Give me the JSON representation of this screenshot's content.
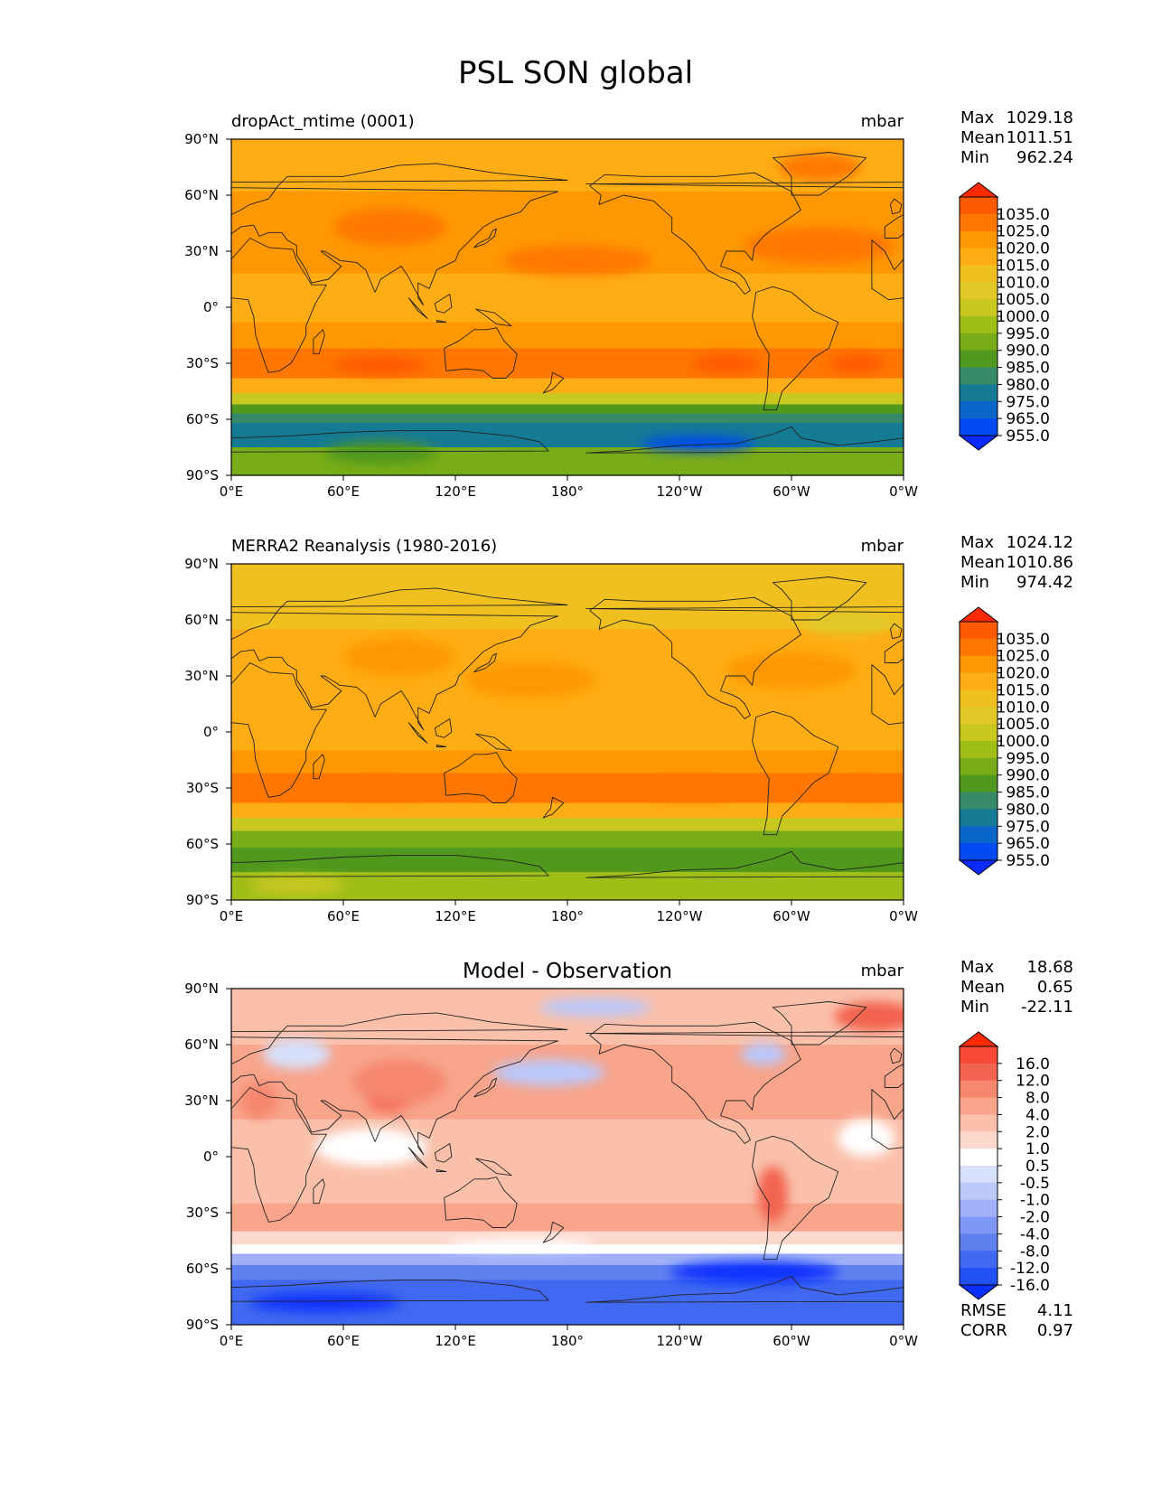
{
  "figure_title": "PSL SON global",
  "axes": {
    "xticks": [
      "0°E",
      "60°E",
      "120°E",
      "180°",
      "120°W",
      "60°W",
      "0°W"
    ],
    "yticks": [
      "90°N",
      "60°N",
      "30°N",
      "0°",
      "30°S",
      "60°S",
      "90°S"
    ]
  },
  "chart_data": [
    {
      "type": "heatmap",
      "panel": "model",
      "title": "dropAct_mtime (0001)",
      "units": "mbar",
      "xlim": [
        0,
        360
      ],
      "ylim": [
        -90,
        90
      ],
      "stats": {
        "max_label": "Max",
        "max": "1029.18",
        "mean_label": "Mean",
        "mean": "1011.51",
        "min_label": "Min",
        "min": "962.24"
      },
      "colorbar": {
        "ticks": [
          "1035.0",
          "1025.0",
          "1020.0",
          "1015.0",
          "1010.0",
          "1005.0",
          "1000.0",
          "995.0",
          "990.0",
          "985.0",
          "980.0",
          "975.0",
          "965.0",
          "955.0"
        ],
        "colors": [
          "#ff2a00",
          "#ff5a00",
          "#ff7700",
          "#ff9800",
          "#ffad14",
          "#f0c020",
          "#e0c82a",
          "#c8c820",
          "#a0be18",
          "#78ac18",
          "#50981e",
          "#368a6a",
          "#157a94",
          "#0a66c8",
          "#0048f0",
          "#0a2aff"
        ]
      },
      "zones": [
        {
          "lat": [
            88,
            62
          ],
          "color_index": 4
        },
        {
          "lat": [
            62,
            45
          ],
          "color_index": 3
        },
        {
          "lat": [
            45,
            18
          ],
          "color_index": 3
        },
        {
          "lat": [
            18,
            -8
          ],
          "color_index": 4
        },
        {
          "lat": [
            -8,
            -22
          ],
          "color_index": 3
        },
        {
          "lat": [
            -22,
            -38
          ],
          "color_index": 2
        },
        {
          "lat": [
            -38,
            -46
          ],
          "color_index": 4
        },
        {
          "lat": [
            -46,
            -52
          ],
          "color_index": 7
        },
        {
          "lat": [
            -52,
            -57
          ],
          "color_index": 10
        },
        {
          "lat": [
            -57,
            -62
          ],
          "color_index": 11
        },
        {
          "lat": [
            -62,
            -75
          ],
          "color_index": 12
        },
        {
          "lat": [
            -75,
            -90
          ],
          "color_index": 9
        }
      ],
      "blobs": [
        {
          "lon": 85,
          "lat": 43,
          "rx": 30,
          "ry": 10,
          "color_index": 2
        },
        {
          "lon": 80,
          "lat": -31,
          "rx": 25,
          "ry": 5,
          "color_index": 1
        },
        {
          "lon": 265,
          "lat": -30,
          "rx": 18,
          "ry": 5,
          "color_index": 1
        },
        {
          "lon": 335,
          "lat": -30,
          "rx": 15,
          "ry": 5,
          "color_index": 1
        },
        {
          "lon": 185,
          "lat": 25,
          "rx": 40,
          "ry": 8,
          "color_index": 2
        },
        {
          "lon": 315,
          "lat": 33,
          "rx": 40,
          "ry": 10,
          "color_index": 2
        },
        {
          "lon": 315,
          "lat": 75,
          "rx": 22,
          "ry": 7,
          "color_index": 2
        },
        {
          "lon": 250,
          "lat": -73,
          "rx": 30,
          "ry": 4,
          "color_index": 14
        },
        {
          "lon": 80,
          "lat": -78,
          "rx": 30,
          "ry": 6,
          "color_index": 10
        }
      ]
    },
    {
      "type": "heatmap",
      "panel": "observation",
      "title": "MERRA2 Reanalysis (1980-2016)",
      "units": "mbar",
      "xlim": [
        0,
        360
      ],
      "ylim": [
        -90,
        90
      ],
      "stats": {
        "max_label": "Max",
        "max": "1024.12",
        "mean_label": "Mean",
        "mean": "1010.86",
        "min_label": "Min",
        "min": "974.42"
      },
      "colorbar": {
        "ticks": [
          "1035.0",
          "1025.0",
          "1020.0",
          "1015.0",
          "1010.0",
          "1005.0",
          "1000.0",
          "995.0",
          "990.0",
          "985.0",
          "980.0",
          "975.0",
          "965.0",
          "955.0"
        ],
        "colors": [
          "#ff2a00",
          "#ff5a00",
          "#ff7700",
          "#ff9800",
          "#ffad14",
          "#f0c020",
          "#e0c82a",
          "#c8c820",
          "#a0be18",
          "#78ac18",
          "#50981e",
          "#368a6a",
          "#157a94",
          "#0a66c8",
          "#0048f0",
          "#0a2aff"
        ]
      },
      "zones": [
        {
          "lat": [
            88,
            55
          ],
          "color_index": 5
        },
        {
          "lat": [
            55,
            15
          ],
          "color_index": 4
        },
        {
          "lat": [
            15,
            -10
          ],
          "color_index": 4
        },
        {
          "lat": [
            -10,
            -22
          ],
          "color_index": 3
        },
        {
          "lat": [
            -22,
            -38
          ],
          "color_index": 2
        },
        {
          "lat": [
            -38,
            -46
          ],
          "color_index": 4
        },
        {
          "lat": [
            -46,
            -53
          ],
          "color_index": 7
        },
        {
          "lat": [
            -53,
            -62
          ],
          "color_index": 9
        },
        {
          "lat": [
            -62,
            -75
          ],
          "color_index": 10
        },
        {
          "lat": [
            -75,
            -90
          ],
          "color_index": 8
        }
      ],
      "blobs": [
        {
          "lon": 90,
          "lat": 40,
          "rx": 30,
          "ry": 10,
          "color_index": 3
        },
        {
          "lon": 160,
          "lat": 28,
          "rx": 35,
          "ry": 10,
          "color_index": 3
        },
        {
          "lon": 300,
          "lat": 33,
          "rx": 35,
          "ry": 10,
          "color_index": 3
        },
        {
          "lon": 80,
          "lat": -31,
          "rx": 25,
          "ry": 5,
          "color_index": 2
        },
        {
          "lon": 245,
          "lat": -31,
          "rx": 25,
          "ry": 6,
          "color_index": 2
        },
        {
          "lon": 340,
          "lat": -31,
          "rx": 15,
          "ry": 5,
          "color_index": 2
        },
        {
          "lon": 330,
          "lat": 58,
          "rx": 25,
          "ry": 6,
          "color_index": 6
        },
        {
          "lon": 35,
          "lat": -82,
          "rx": 25,
          "ry": 5,
          "color_index": 7
        }
      ]
    },
    {
      "type": "heatmap",
      "panel": "difference",
      "title": "Model - Observation",
      "units": "mbar",
      "xlim": [
        0,
        360
      ],
      "ylim": [
        -90,
        90
      ],
      "stats": {
        "max_label": "Max",
        "max": "18.68",
        "mean_label": "Mean",
        "mean": "0.65",
        "min_label": "Min",
        "min": "-22.11"
      },
      "metrics": {
        "rmse_label": "RMSE",
        "rmse": "4.11",
        "corr_label": "CORR",
        "corr": "0.97"
      },
      "colorbar": {
        "ticks": [
          "16.0",
          "12.0",
          "8.0",
          "4.0",
          "2.0",
          "1.0",
          "0.5",
          "-0.5",
          "-1.0",
          "-2.0",
          "-4.0",
          "-8.0",
          "-12.0",
          "-16.0"
        ],
        "colors": [
          "#ff2a00",
          "#f84a35",
          "#f26450",
          "#f5876e",
          "#f8a58c",
          "#fac0aa",
          "#fdd8cd",
          "#ffffff",
          "#d6e0fb",
          "#bac8fa",
          "#9fb0f8",
          "#7f98f5",
          "#6080f0",
          "#4068f0",
          "#2250f5",
          "#0a30ff"
        ]
      },
      "zones": [
        {
          "lat": [
            88,
            60
          ],
          "color_index": 5
        },
        {
          "lat": [
            60,
            20
          ],
          "color_index": 4
        },
        {
          "lat": [
            20,
            0
          ],
          "color_index": 5
        },
        {
          "lat": [
            0,
            -25
          ],
          "color_index": 5
        },
        {
          "lat": [
            -25,
            -40
          ],
          "color_index": 4
        },
        {
          "lat": [
            -40,
            -47
          ],
          "color_index": 6
        },
        {
          "lat": [
            -47,
            -52
          ],
          "color_index": 7
        },
        {
          "lat": [
            -52,
            -58
          ],
          "color_index": 10
        },
        {
          "lat": [
            -58,
            -66
          ],
          "color_index": 12
        },
        {
          "lat": [
            -66,
            -90
          ],
          "color_index": 13
        }
      ],
      "blobs": [
        {
          "lon": 85,
          "lat": 30,
          "rx": 12,
          "ry": 5,
          "color_index": 1
        },
        {
          "lon": 90,
          "lat": 40,
          "rx": 25,
          "ry": 12,
          "color_index": 3
        },
        {
          "lon": 170,
          "lat": 45,
          "rx": 30,
          "ry": 7,
          "color_index": 9
        },
        {
          "lon": 195,
          "lat": 80,
          "rx": 30,
          "ry": 5,
          "color_index": 9
        },
        {
          "lon": 35,
          "lat": 55,
          "rx": 18,
          "ry": 8,
          "color_index": 8
        },
        {
          "lon": 285,
          "lat": 55,
          "rx": 12,
          "ry": 6,
          "color_index": 9
        },
        {
          "lon": 75,
          "lat": 5,
          "rx": 30,
          "ry": 10,
          "color_index": 7
        },
        {
          "lon": 340,
          "lat": 10,
          "rx": 15,
          "ry": 10,
          "color_index": 7
        },
        {
          "lon": 345,
          "lat": 75,
          "rx": 22,
          "ry": 8,
          "color_index": 2
        },
        {
          "lon": 290,
          "lat": -20,
          "rx": 8,
          "ry": 15,
          "color_index": 2
        },
        {
          "lon": 50,
          "lat": -78,
          "rx": 40,
          "ry": 5,
          "color_index": 15
        },
        {
          "lon": 280,
          "lat": -62,
          "rx": 45,
          "ry": 6,
          "color_index": 15
        },
        {
          "lon": 155,
          "lat": -47,
          "rx": 40,
          "ry": 3,
          "color_index": 7
        },
        {
          "lon": 15,
          "lat": 30,
          "rx": 10,
          "ry": 10,
          "color_index": 3
        }
      ]
    }
  ]
}
